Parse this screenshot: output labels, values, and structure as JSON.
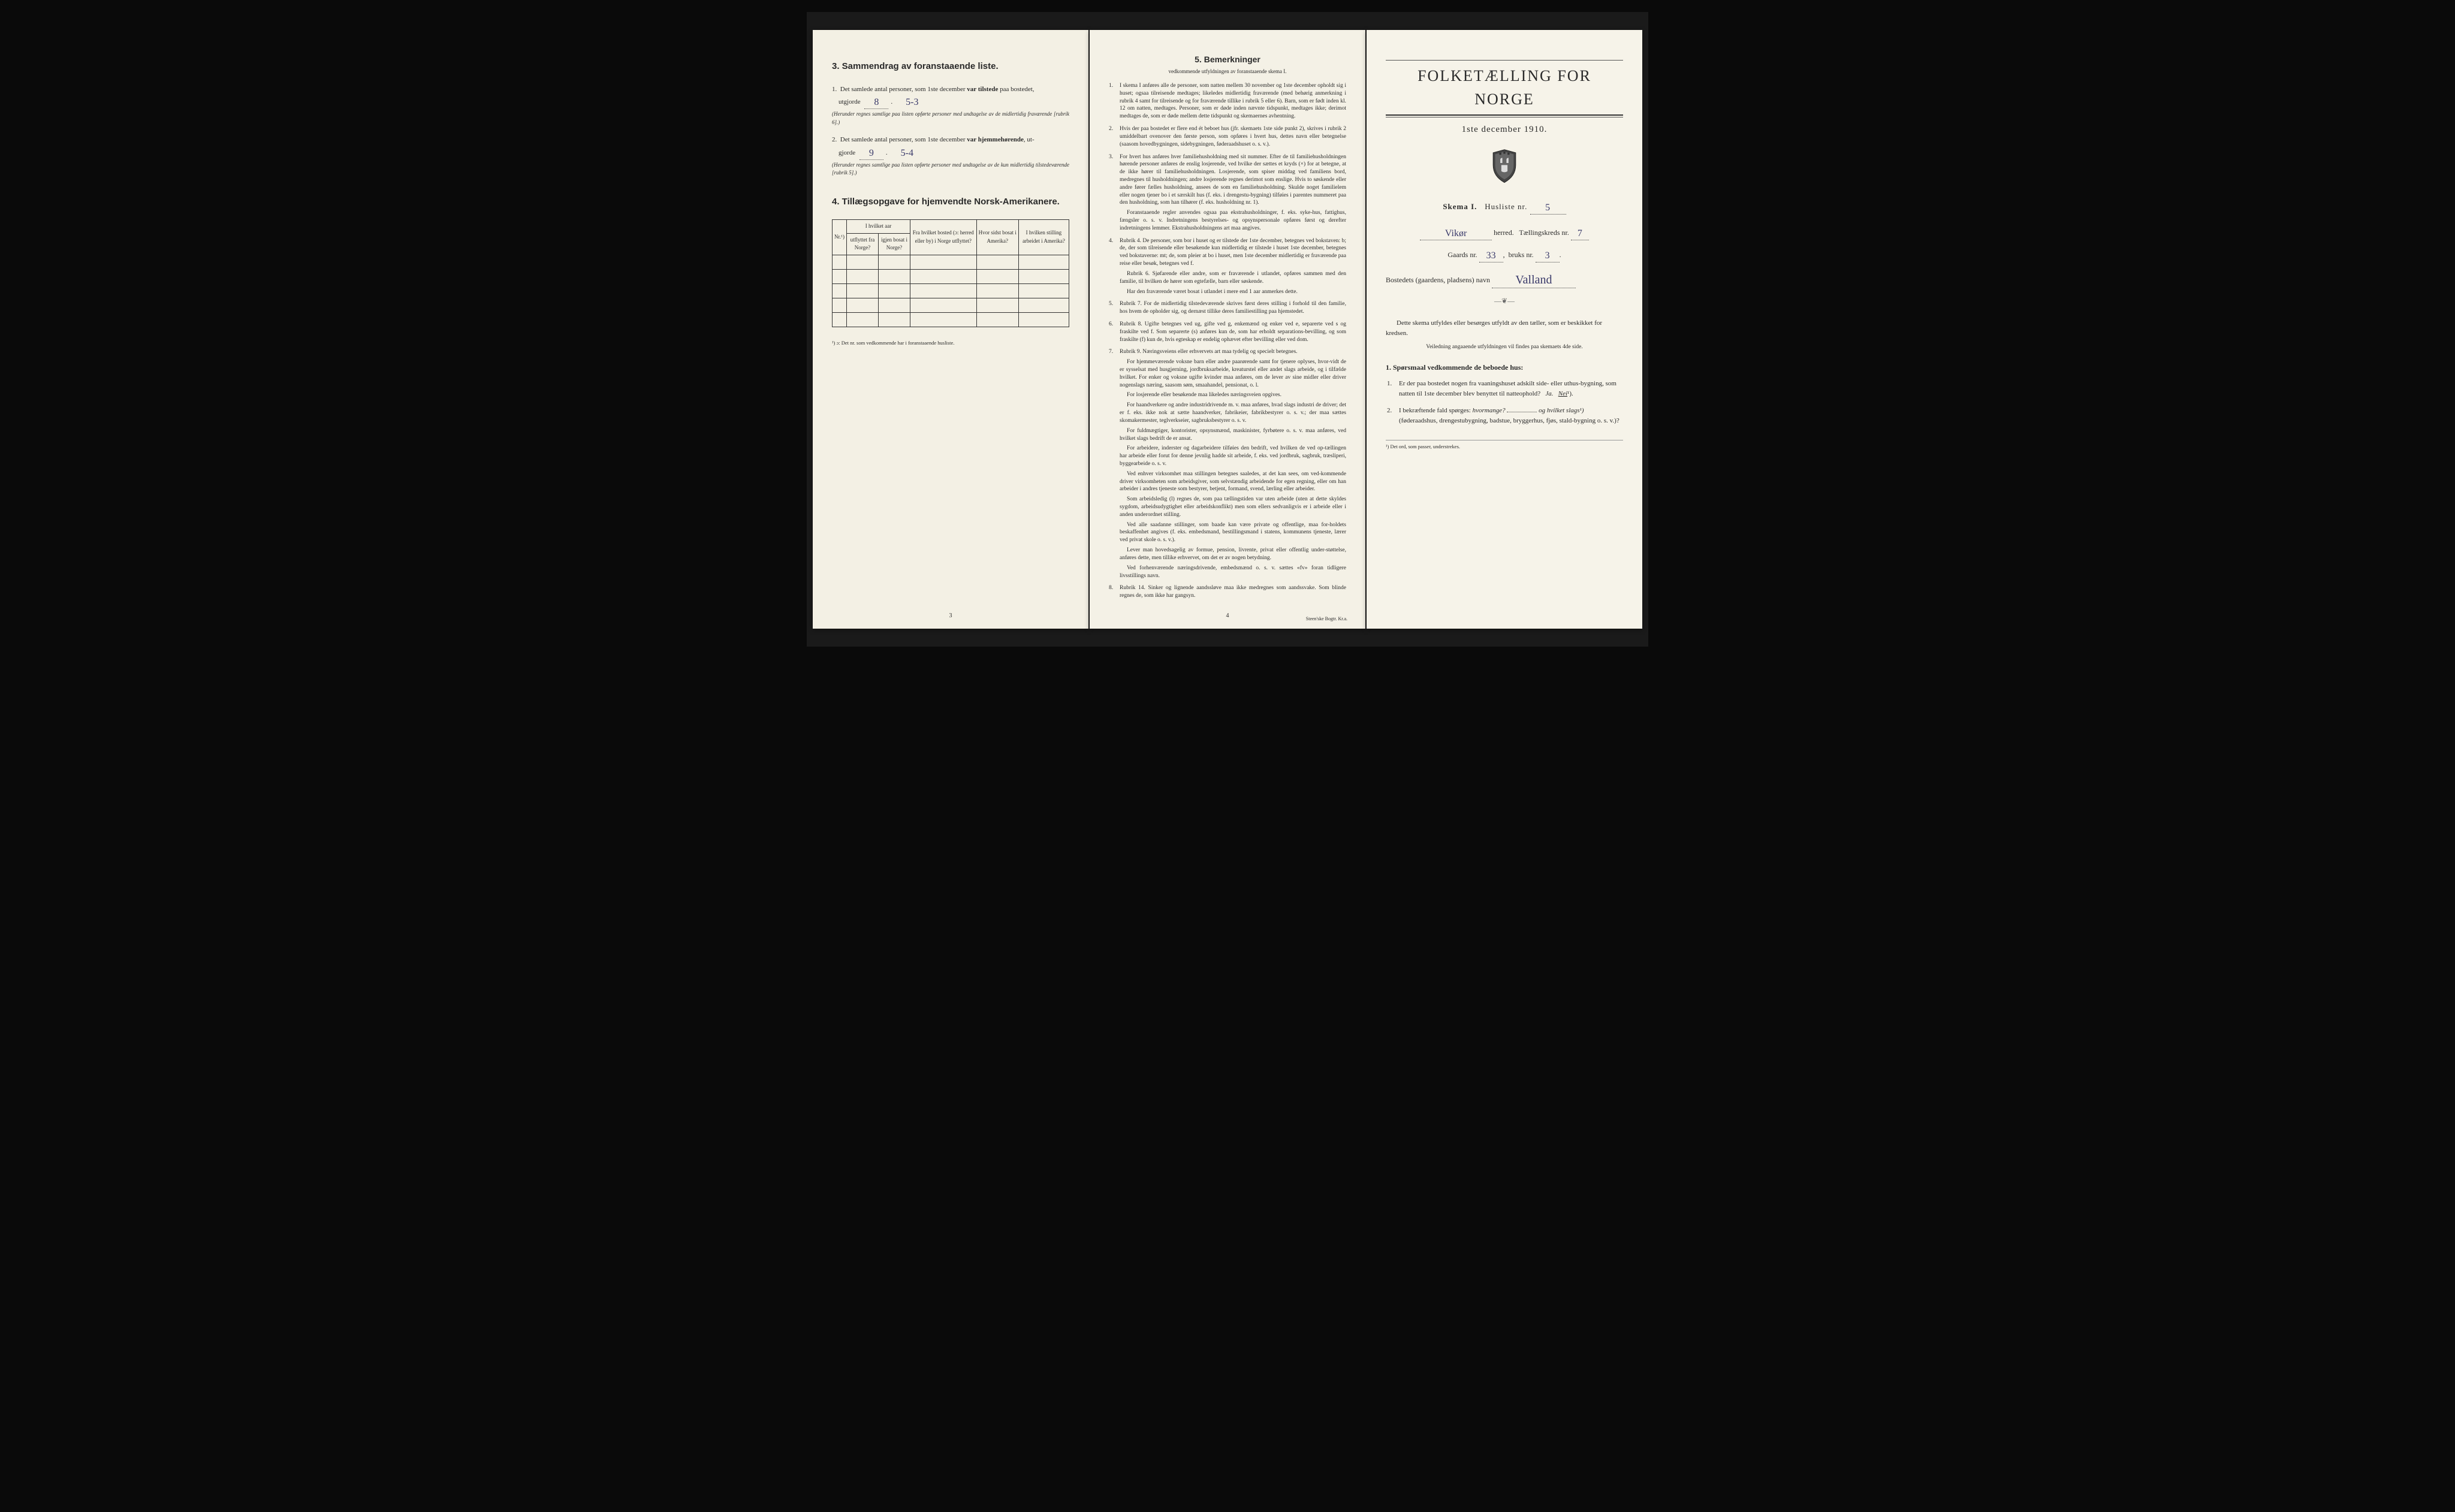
{
  "document": {
    "title": "FOLKETÆLLING FOR NORGE",
    "date": "1ste december 1910.",
    "skema": "Skema I.",
    "husliste_label": "Husliste nr.",
    "husliste_nr": "5",
    "herred_name": "Vikør",
    "herred_label": "herred.",
    "kreds_label": "Tællingskreds nr.",
    "kreds_nr": "7",
    "gaards_label": "Gaards nr.",
    "gaards_nr": "33",
    "bruks_label": "bruks nr.",
    "bruks_nr": "3",
    "bosted_label": "Bostedets (gaardens, pladsens) navn",
    "bosted_name": "Valland",
    "instruction_text": "Dette skema utfyldes eller besørges utfyldt av den tæller, som er beskikket for kredsen.",
    "instruction_sub": "Veiledning angaaende utfyldningen vil findes paa skemaets 4de side.",
    "section1_heading": "1. Spørsmaal vedkommende de beboede hus:",
    "q1_text": "Er der paa bostedet nogen fra vaaningshuset adskilt side- eller uthus-bygning, som natten til 1ste december blev benyttet til natteophold?",
    "q1_ja": "Ja.",
    "q1_nei": "Nei",
    "q1_sup": "¹).",
    "q2_text_a": "I bekræftende fald spørges:",
    "q2_hvor": "hvormange?",
    "q2_og": "og",
    "q2_hvilket": "hvilket slags¹)",
    "q2_text_b": "(føderaadshus, drengestubygning, badstue, bryggerhus, fjøs, stald-bygning o. s. v.)?",
    "footnote_right": "¹) Det ord, som passer, understrekes."
  },
  "page1": {
    "section3_title": "3.   Sammendrag av foranstaaende liste.",
    "item1_text_a": "Det samlede antal personer, som 1ste december",
    "item1_bold": "var tilstede",
    "item1_text_b": "paa bostedet,",
    "utgjorde_label": "utgjorde",
    "item1_val1": "8",
    "item1_val2": "5-3",
    "item1_note": "(Herunder regnes samtlige paa listen opførte personer med undtagelse av de midlertidig fraværende [rubrik 6].)",
    "item2_text_a": "Det samlede antal personer, som 1ste december",
    "item2_bold": "var hjemmehørende",
    "item2_text_b": ", ut-",
    "item2_gjorde": "gjorde",
    "item2_val1": "9",
    "item2_val2": "5-4",
    "item2_note": "(Herunder regnes samtlige paa listen opførte personer med undtagelse av de kun midlertidig tilstedeværende [rubrik 5].)",
    "section4_title": "4.   Tillægsopgave for hjemvendte Norsk-Amerikanere.",
    "table": {
      "col_nr": "Nr.¹)",
      "col_aar": "I hvilket aar",
      "col_utflyttet": "utflyttet fra Norge?",
      "col_igjen": "igjen bosat i Norge?",
      "col_bosted": "Fra hvilket bosted (ɔ: herred eller by) i Norge utflyttet?",
      "col_sidst": "Hvor sidst bosat i Amerika?",
      "col_stilling": "I hvilken stilling arbeidet i Amerika?",
      "rows": 5
    },
    "table_footnote": "¹) ɔ: Det nr. som vedkommende har i foranstaaende husliste.",
    "page_num": "3"
  },
  "page2": {
    "title": "5.   Bemerkninger",
    "subtitle": "vedkommende utfyldningen av foranstaaende skema I.",
    "remarks": [
      "I skema I anføres alle de personer, som natten mellem 30 november og 1ste december opholdt sig i huset; ogsaa tilreisende medtages; likeledes midlertidig fraværende (med behørig anmerkning i rubrik 4 samt for tilreisende og for fraværende tillike i rubrik 5 eller 6). Barn, som er født inden kl. 12 om natten, medtages. Personer, som er døde inden nævnte tidspunkt, medtages ikke; derimot medtages de, som er døde mellem dette tidspunkt og skemaernes avhentning.",
      "Hvis der paa bostedet er flere end ét beboet hus (jfr. skemaets 1ste side punkt 2), skrives i rubrik 2 umiddelbart ovenover den første person, som opføres i hvert hus, dettes navn eller betegnelse (saasom hovedbygningen, sidebygningen, føderaadshuset o. s. v.).",
      "For hvert hus anføres hver familiehusholdning med sit nummer. Efter de til familiehusholdningen hørende personer anføres de enslig losjerende, ved hvilke der sættes et kryds (×) for at betegne, at de ikke hører til familiehusholdningen. Losjerende, som spiser middag ved familiens bord, medregnes til husholdningen; andre losjerende regnes derimot som enslige. Hvis to søskende eller andre fører fælles husholdning, ansees de som en familiehusholdning. Skulde noget familielem eller nogen tjener bo i et særskilt hus (f. eks. i drengestu-bygning) tilføies i parentes nummeret paa den husholdning, som han tilhører (f. eks. husholdning nr. 1).",
      "Rubrik 4. De personer, som bor i huset og er tilstede der 1ste december, betegnes ved bokstaven: b; de, der som tilreisende eller besøkende kun midlertidig er tilstede i huset 1ste december, betegnes ved bokstaverne: mt; de, som pleier at bo i huset, men 1ste december midlertidig er fraværende paa reise eller besøk, betegnes ved f.",
      "Rubrik 7. For de midlertidig tilstedeværende skrives først deres stilling i forhold til den familie, hos hvem de opholder sig, og dernæst tillike deres familiestilling paa hjemstedet.",
      "Rubrik 8. Ugifte betegnes ved ug, gifte ved g, enkemænd og enker ved e, separerte ved s og fraskilte ved f. Som separerte (s) anføres kun de, som har erholdt separations-bevilling, og som fraskilte (f) kun de, hvis egteskap er endelig ophævet efter bevilling eller ved dom.",
      "Rubrik 9. Næringsveiens eller erhvervets art maa tydelig og specielt betegnes.",
      "Rubrik 14. Sinker og lignende aandssløve maa ikke medregnes som aandssvake. Som blinde regnes de, som ikke har gangsyn."
    ],
    "remark3_extra": "Foranstaaende regler anvendes ogsaa paa ekstrahusholdninger, f. eks. syke-hus, fattighus, fængsler o. s. v. Indretningens bestyrelses- og opsynspersonale opføres først og derefter indretningens lemmer. Ekstrahusholdningens art maa angives.",
    "remark4_extra1": "Rubrik 6. Sjøfarende eller andre, som er fraværende i utlandet, opføres sammen med den familie, til hvilken de hører som egtefælle, barn eller søskende.",
    "remark4_extra2": "Har den fraværende været bosat i utlandet i mere end 1 aar anmerkes dette.",
    "remark7_extra": [
      "For hjemmeværende voksne barn eller andre paarørende samt for tjenere oplyses, hvor-vidt de er sysselsat med husgjerning, jordbruksarbeide, kreaturstel eller andet slags arbeide, og i tilfælde hvilket. For enker og voksne ugifte kvinder maa anføres, om de lever av sine midler eller driver nogenslags næring, saasom søm, smaahandel, pensionat, o. l.",
      "For losjerende eller besøkende maa likeledes næringsveien opgives.",
      "For haandverkere og andre industridrivende m. v. maa anføres, hvad slags industri de driver; det er f. eks. ikke nok at sætte haandverker, fabrikeier, fabrikbestyrer o. s. v.; der maa sættes skomakermester, teglverkseier, sagbruksbestyrer o. s. v.",
      "For fuldmægtiger, kontorister, opsynsmænd, maskinister, fyrbøtere o. s. v. maa anføres, ved hvilket slags bedrift de er ansat.",
      "For arbeidere, inderster og dagarbeidere tilføies den bedrift, ved hvilken de ved op-tællingen har arbeide eller forut for denne jevnlig hadde sit arbeide, f. eks. ved jordbruk, sagbruk, træsliperi, byggearbeide o. s. v.",
      "Ved enhver virksomhet maa stillingen betegnes saaledes, at det kan sees, om ved-kommende driver virksomheten som arbeidsgiver, som selvstændig arbeidende for egen regning, eller om han arbeider i andres tjeneste som bestyrer, betjent, formand, svend, lærling eller arbeider.",
      "Som arbeidsledig (l) regnes de, som paa tællingstiden var uten arbeide (uten at dette skyldes sygdom, arbeidsudygtighet eller arbeidskonflikt) men som ellers sedvanligvis er i arbeide eller i anden underordnet stilling.",
      "Ved alle saadanne stillinger, som baade kan være private og offentlige, maa for-holdets beskaffenhet angives (f. eks. embedsmand, bestillingsmand i statens, kommunens tjeneste, lærer ved privat skole o. s. v.).",
      "Lever man hovedsagelig av formue, pension, livrente, privat eller offentlig under-støttelse, anføres dette, men tillike erhvervet, om det er av nogen betydning.",
      "Ved forhenværende næringsdrivende, embedsmænd o. s. v. sættes «fv» foran tidligere livsstillings navn."
    ],
    "page_num": "4",
    "printer": "Steen'ske Bogtr. Kr.a."
  },
  "style": {
    "bg_color": "#0a0a0a",
    "paper_color": "#f5f2e8",
    "text_color": "#2a2a2a",
    "handwriting_color": "#3a3a6a"
  }
}
